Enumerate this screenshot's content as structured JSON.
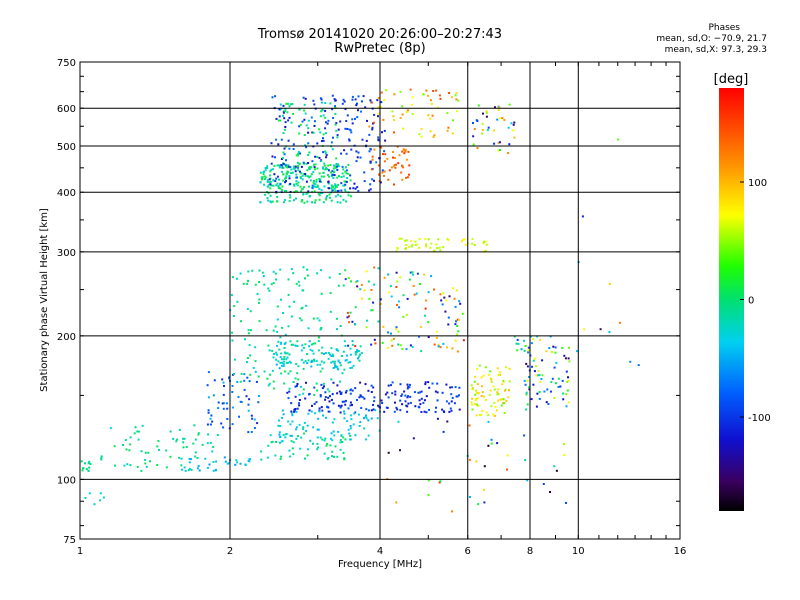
{
  "header": {
    "title_line1": "Tromsø 20141020 20:26:00–20:27:43",
    "title_line2": "RwPretec (8p)"
  },
  "stats": {
    "heading": "Phases",
    "line_o": "mean, sd,O: −70.9, 21.7",
    "line_x": "mean, sd,X:  97.3, 29.3"
  },
  "chart_data": {
    "type": "scatter",
    "title": "Tromsø 20141020 20:26:00–20:27:43",
    "subtitle": "RwPretec (8p)",
    "xlabel": "Frequency [MHz]",
    "ylabel": "Stationary phase Virtual Height [km]",
    "xscale": "log",
    "yscale": "log",
    "xlim": [
      1,
      16
    ],
    "ylim": [
      75,
      750
    ],
    "xticks": [
      1,
      2,
      4,
      6,
      8,
      10,
      16
    ],
    "yticks": [
      75,
      100,
      200,
      300,
      400,
      500,
      600,
      750
    ],
    "xgrid": [
      2,
      4,
      6,
      8,
      10
    ],
    "ygrid": [
      100,
      200,
      300,
      400,
      500,
      600
    ],
    "colorbar": {
      "label": "[deg]",
      "ticks": [
        100,
        0,
        -100
      ],
      "range": [
        -180,
        180
      ],
      "colormap": "rainbow (black at −180, violet, blue, cyan, green, yellow, orange, red at +180)"
    },
    "clusters": [
      {
        "f": [
          1.0,
          1.05
        ],
        "h": [
          103,
          110
        ],
        "n": 12,
        "phase": [
          -20,
          10
        ]
      },
      {
        "f": [
          1.0,
          1.12
        ],
        "h": [
          88,
          96
        ],
        "n": 6,
        "phase": [
          -40,
          -10
        ]
      },
      {
        "f": [
          1.1,
          1.9
        ],
        "h": [
          104,
          130
        ],
        "n": 70,
        "phase": [
          -30,
          10
        ]
      },
      {
        "f": [
          1.6,
          2.2
        ],
        "h": [
          104,
          112
        ],
        "n": 30,
        "phase": [
          -60,
          -30
        ]
      },
      {
        "f": [
          1.8,
          2.3
        ],
        "h": [
          125,
          170
        ],
        "n": 60,
        "phase": [
          -110,
          -40
        ]
      },
      {
        "f": [
          2.3,
          3.5
        ],
        "h": [
          110,
          125
        ],
        "n": 60,
        "phase": [
          -40,
          10
        ]
      },
      {
        "f": [
          2.3,
          3.5
        ],
        "h": [
          380,
          460
        ],
        "n": 260,
        "phase": [
          -30,
          20
        ]
      },
      {
        "f": [
          2.4,
          4.1
        ],
        "h": [
          400,
          640
        ],
        "n": 220,
        "phase": [
          -130,
          -70
        ]
      },
      {
        "f": [
          2.5,
          3.3
        ],
        "h": [
          440,
          620
        ],
        "n": 80,
        "phase": [
          -30,
          20
        ]
      },
      {
        "f": [
          3.8,
          4.6
        ],
        "h": [
          415,
          500
        ],
        "n": 50,
        "phase": [
          110,
          160
        ]
      },
      {
        "f": [
          3.8,
          5.8
        ],
        "h": [
          520,
          660
        ],
        "n": 60,
        "phase": [
          40,
          150
        ]
      },
      {
        "f": [
          2.0,
          3.4
        ],
        "h": [
          150,
          280
        ],
        "n": 170,
        "phase": [
          -30,
          10
        ]
      },
      {
        "f": [
          2.4,
          3.7
        ],
        "h": [
          170,
          195
        ],
        "n": 110,
        "phase": [
          -50,
          -10
        ]
      },
      {
        "f": [
          2.6,
          5.8
        ],
        "h": [
          138,
          160
        ],
        "n": 190,
        "phase": [
          -130,
          -80
        ]
      },
      {
        "f": [
          2.5,
          4.0
        ],
        "h": [
          120,
          140
        ],
        "n": 80,
        "phase": [
          -50,
          -20
        ]
      },
      {
        "f": [
          3.4,
          5.9
        ],
        "h": [
          185,
          280
        ],
        "n": 130,
        "phase": [
          -150,
          170
        ]
      },
      {
        "f": [
          4.3,
          5.5
        ],
        "h": [
          300,
          320
        ],
        "n": 35,
        "phase": [
          50,
          70
        ]
      },
      {
        "f": [
          5.8,
          6.6
        ],
        "h": [
          300,
          320
        ],
        "n": 15,
        "phase": [
          50,
          80
        ]
      },
      {
        "f": [
          6.1,
          7.3
        ],
        "h": [
          135,
          175
        ],
        "n": 80,
        "phase": [
          40,
          100
        ]
      },
      {
        "f": [
          6.1,
          7.5
        ],
        "h": [
          480,
          620
        ],
        "n": 40,
        "phase": [
          -160,
          150
        ]
      },
      {
        "f": [
          7.8,
          9.6
        ],
        "h": [
          140,
          190
        ],
        "n": 70,
        "phase": [
          -160,
          80
        ]
      },
      {
        "f": [
          7.4,
          10.0
        ],
        "h": [
          185,
          200
        ],
        "n": 20,
        "phase": [
          -100,
          90
        ]
      },
      {
        "f": [
          4.0,
          9.5
        ],
        "h": [
          85,
          135
        ],
        "n": 40,
        "phase": [
          -170,
          170
        ]
      },
      {
        "f": [
          10.0,
          14.0
        ],
        "h": [
          160,
          600
        ],
        "n": 10,
        "phase": [
          -150,
          150
        ]
      }
    ]
  }
}
